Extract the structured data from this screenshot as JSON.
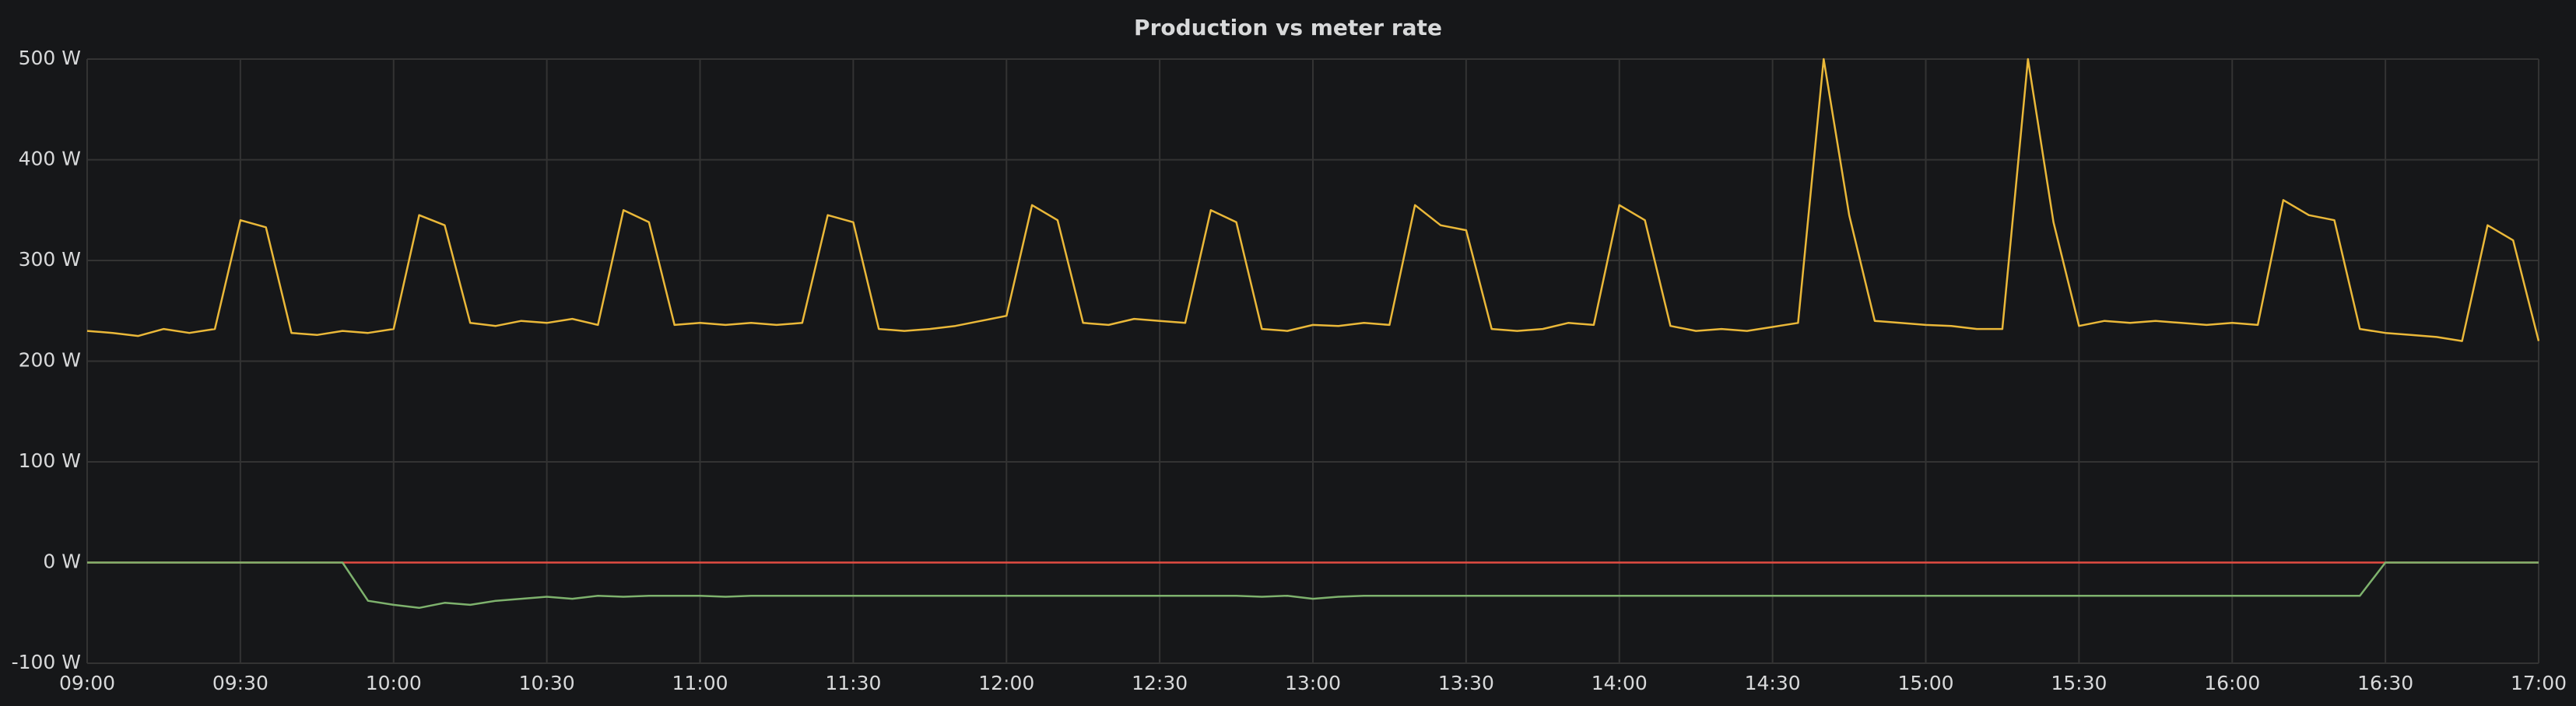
{
  "chart_data": {
    "type": "line",
    "title": "Production vs meter rate",
    "x": [
      "09:00",
      "09:05",
      "09:10",
      "09:15",
      "09:20",
      "09:25",
      "09:30",
      "09:35",
      "09:40",
      "09:45",
      "09:50",
      "09:55",
      "10:00",
      "10:05",
      "10:10",
      "10:15",
      "10:20",
      "10:25",
      "10:30",
      "10:35",
      "10:40",
      "10:45",
      "10:50",
      "10:55",
      "11:00",
      "11:05",
      "11:10",
      "11:15",
      "11:20",
      "11:25",
      "11:30",
      "11:35",
      "11:40",
      "11:45",
      "11:50",
      "11:55",
      "12:00",
      "12:05",
      "12:10",
      "12:15",
      "12:20",
      "12:25",
      "12:30",
      "12:35",
      "12:40",
      "12:45",
      "12:50",
      "12:55",
      "13:00",
      "13:05",
      "13:10",
      "13:15",
      "13:20",
      "13:25",
      "13:30",
      "13:35",
      "13:40",
      "13:45",
      "13:50",
      "13:55",
      "14:00",
      "14:05",
      "14:10",
      "14:15",
      "14:20",
      "14:25",
      "14:30",
      "14:35",
      "14:40",
      "14:45",
      "14:50",
      "14:55",
      "15:00",
      "15:05",
      "15:10",
      "15:15",
      "15:20",
      "15:25",
      "15:30",
      "15:35",
      "15:40",
      "15:45",
      "15:50",
      "15:55",
      "16:00",
      "16:05",
      "16:10",
      "16:15",
      "16:20",
      "16:25",
      "16:30",
      "16:35",
      "16:40",
      "16:45",
      "16:50",
      "16:55",
      "17:00"
    ],
    "series": [
      {
        "color": "#eab839",
        "values": [
          230,
          228,
          225,
          232,
          228,
          232,
          340,
          333,
          228,
          226,
          230,
          228,
          232,
          345,
          335,
          238,
          235,
          240,
          238,
          242,
          236,
          350,
          338,
          236,
          238,
          236,
          238,
          236,
          238,
          345,
          338,
          232,
          230,
          232,
          235,
          240,
          245,
          355,
          340,
          238,
          236,
          242,
          240,
          238,
          350,
          338,
          232,
          230,
          236,
          235,
          238,
          236,
          355,
          335,
          330,
          232,
          230,
          232,
          238,
          236,
          355,
          340,
          235,
          230,
          232,
          230,
          234,
          238,
          500,
          345,
          240,
          238,
          236,
          235,
          232,
          232,
          500,
          338,
          235,
          240,
          238,
          240,
          238,
          236,
          238,
          236,
          360,
          345,
          340,
          232,
          228,
          226,
          224,
          220,
          335,
          320,
          220
        ]
      },
      {
        "color": "#e24d42",
        "values": [
          0,
          0,
          0,
          0,
          0,
          0,
          0,
          0,
          0,
          0,
          0,
          0,
          0,
          0,
          0,
          0,
          0,
          0,
          0,
          0,
          0,
          0,
          0,
          0,
          0,
          0,
          0,
          0,
          0,
          0,
          0,
          0,
          0,
          0,
          0,
          0,
          0,
          0,
          0,
          0,
          0,
          0,
          0,
          0,
          0,
          0,
          0,
          0,
          0,
          0,
          0,
          0,
          0,
          0,
          0,
          0,
          0,
          0,
          0,
          0,
          0,
          0,
          0,
          0,
          0,
          0,
          0,
          0,
          0,
          0,
          0,
          0,
          0,
          0,
          0,
          0,
          0,
          0,
          0,
          0,
          0,
          0,
          0,
          0,
          0,
          0,
          0,
          0,
          0,
          0,
          0,
          0,
          0,
          0,
          0,
          0,
          0
        ]
      },
      {
        "color": "#7eb26d",
        "values": [
          0,
          0,
          0,
          0,
          0,
          0,
          0,
          0,
          0,
          0,
          0,
          -38,
          -42,
          -45,
          -40,
          -42,
          -38,
          -36,
          -34,
          -36,
          -33,
          -34,
          -33,
          -33,
          -33,
          -34,
          -33,
          -33,
          -33,
          -33,
          -33,
          -33,
          -33,
          -33,
          -33,
          -33,
          -33,
          -33,
          -33,
          -33,
          -33,
          -33,
          -33,
          -33,
          -33,
          -33,
          -34,
          -33,
          -36,
          -34,
          -33,
          -33,
          -33,
          -33,
          -33,
          -33,
          -33,
          -33,
          -33,
          -33,
          -33,
          -33,
          -33,
          -33,
          -33,
          -33,
          -33,
          -33,
          -33,
          -33,
          -33,
          -33,
          -33,
          -33,
          -33,
          -33,
          -33,
          -33,
          -33,
          -33,
          -33,
          -33,
          -33,
          -33,
          -33,
          -33,
          -33,
          -33,
          -33,
          -33,
          0,
          0,
          0,
          0,
          0,
          0,
          0
        ]
      }
    ],
    "xlim": [
      "09:00",
      "17:00"
    ],
    "xticks": [
      "09:00",
      "09:30",
      "10:00",
      "10:30",
      "11:00",
      "11:30",
      "12:00",
      "12:30",
      "13:00",
      "13:30",
      "14:00",
      "14:30",
      "15:00",
      "15:30",
      "16:00",
      "16:30",
      "17:00"
    ],
    "ylim": [
      -100,
      500
    ],
    "yticks": [
      {
        "value": -100,
        "label": "-100 W"
      },
      {
        "value": 0,
        "label": "0 W"
      },
      {
        "value": 100,
        "label": "100 W"
      },
      {
        "value": 200,
        "label": "200 W"
      },
      {
        "value": 300,
        "label": "300 W"
      },
      {
        "value": 400,
        "label": "400 W"
      },
      {
        "value": 500,
        "label": "500 W"
      }
    ],
    "grid": true
  }
}
